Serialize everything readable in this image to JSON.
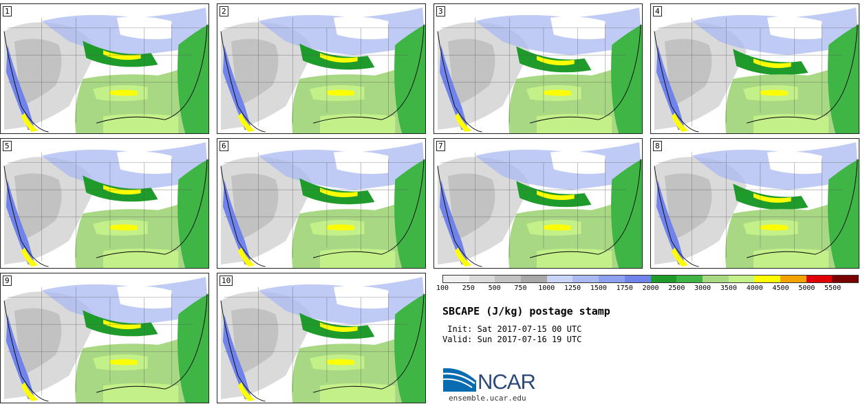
{
  "panels": [
    {
      "label": "1"
    },
    {
      "label": "2"
    },
    {
      "label": "3"
    },
    {
      "label": "4"
    },
    {
      "label": "5"
    },
    {
      "label": "6"
    },
    {
      "label": "7"
    },
    {
      "label": "8"
    },
    {
      "label": "9"
    },
    {
      "label": "10"
    }
  ],
  "colorbar": {
    "colors": [
      "#f0f0f0",
      "#dadada",
      "#c2c2c2",
      "#a8a8a8",
      "#c9d4f6",
      "#a9b9f2",
      "#8da1ee",
      "#7083ea",
      "#1e9b2a",
      "#3fb545",
      "#a8d884",
      "#c4f08a",
      "#ffff00",
      "#f4a200",
      "#e10000",
      "#7a0000"
    ],
    "labels": [
      "100",
      "250",
      "500",
      "750",
      "1000",
      "1250",
      "1500",
      "1750",
      "2000",
      "2500",
      "3000",
      "3500",
      "4000",
      "4500",
      "5000",
      "5500"
    ]
  },
  "title": "SBCAPE (J/kg) postage stamp",
  "init": " Init: Sat 2017-07-15 00 UTC",
  "valid": "Valid: Sun 2017-07-16 19 UTC",
  "logo": {
    "text": "NCAR",
    "url": "ensemble.ucar.edu"
  }
}
